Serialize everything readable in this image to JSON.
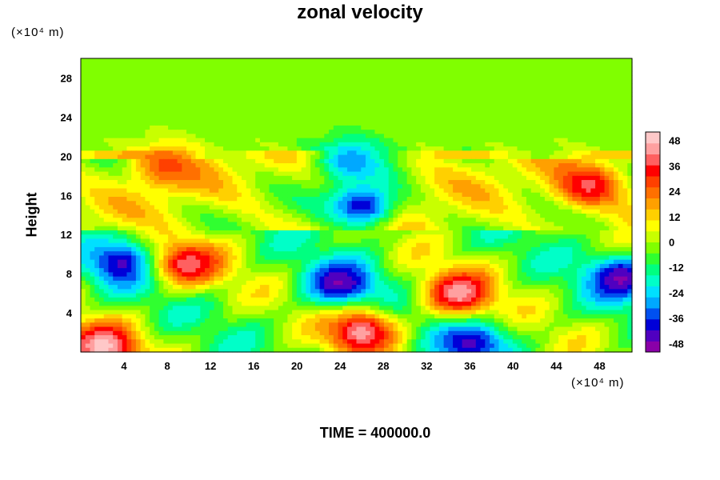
{
  "chart_data": {
    "type": "heatmap",
    "title": "zonal velocity",
    "xlabel": "",
    "ylabel": "Height",
    "x_unit_label": "(×10⁴ m)",
    "y_unit_label": "(×10⁴ m)",
    "x_ticks": [
      4,
      8,
      12,
      16,
      20,
      24,
      28,
      32,
      36,
      40,
      44,
      48
    ],
    "y_ticks": [
      4,
      8,
      12,
      16,
      20,
      24,
      28
    ],
    "xlim": [
      0,
      51
    ],
    "ylim": [
      0,
      30
    ],
    "colorbar": {
      "ticks": [
        48,
        36,
        24,
        12,
        0,
        -12,
        -24,
        -36,
        -48
      ],
      "range": [
        -52,
        52
      ],
      "colors": [
        "#8a00a8",
        "#5000c0",
        "#0000d8",
        "#0050f0",
        "#00a8ff",
        "#00e0ff",
        "#00ffc8",
        "#00ff80",
        "#30ff30",
        "#80ff00",
        "#c8ff00",
        "#ffff00",
        "#ffd000",
        "#ffa000",
        "#ff7000",
        "#ff4000",
        "#ff0000",
        "#ff6060",
        "#ffa0a0",
        "#ffc8c8"
      ]
    },
    "features": [
      {
        "x": 24,
        "y": 7,
        "value": -48
      },
      {
        "x": 4,
        "y": 9,
        "value": -45
      },
      {
        "x": 50,
        "y": 7.5,
        "value": -48
      },
      {
        "x": 36,
        "y": 1,
        "value": -44
      },
      {
        "x": 35,
        "y": 6,
        "value": 45
      },
      {
        "x": 10,
        "y": 9,
        "value": 40
      },
      {
        "x": 47,
        "y": 17,
        "value": 38
      },
      {
        "x": 26,
        "y": 2,
        "value": 44
      },
      {
        "x": 2,
        "y": 0.6,
        "value": 50
      },
      {
        "x": 8,
        "y": 19,
        "value": 28
      },
      {
        "x": 26,
        "y": 15,
        "value": -40
      },
      {
        "x": 25,
        "y": 19.6,
        "value": -30
      }
    ]
  },
  "footer": {
    "time_label": "TIME = 400000.0"
  }
}
